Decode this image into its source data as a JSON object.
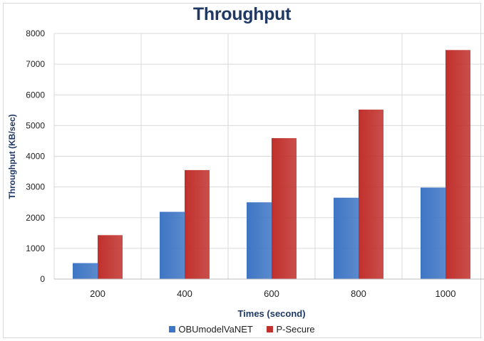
{
  "chart_data": {
    "type": "bar",
    "title": "Throughput",
    "xlabel": "Times (second)",
    "ylabel": "Throughput  (KB/sec)",
    "categories": [
      "200",
      "400",
      "600",
      "800",
      "1000"
    ],
    "ylim": [
      0,
      8000
    ],
    "yticks": [
      0,
      1000,
      2000,
      3000,
      4000,
      5000,
      6000,
      7000,
      8000
    ],
    "grid": true,
    "legend_position": "bottom",
    "series": [
      {
        "name": "OBUmodelVaNET",
        "values": [
          520,
          2190,
          2500,
          2650,
          2980
        ],
        "color": "#3e75c4"
      },
      {
        "name": "P-Secure",
        "values": [
          1430,
          3550,
          4590,
          5520,
          7460
        ],
        "color": "#c0302c"
      }
    ]
  }
}
